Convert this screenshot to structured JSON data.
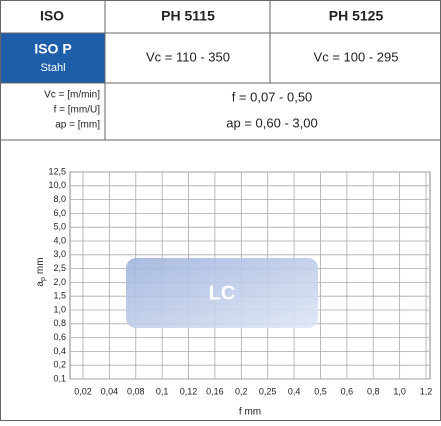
{
  "table": {
    "header": [
      "ISO",
      "PH 5115",
      "PH 5125"
    ],
    "material": {
      "code": "ISO P",
      "name": "Stahl",
      "cells": [
        "Vc = 110 - 350",
        "Vc = 100 - 295"
      ]
    },
    "units": {
      "labels": [
        "Vc = [m/min]",
        "f = [mm/U]",
        "ap = [mm]"
      ],
      "lines": [
        "f = 0,07 - 0,50",
        "ap = 0,60 - 3,00"
      ]
    }
  },
  "chart": {
    "ylabel": {
      "main": "a",
      "sub": "p",
      "unit": "mm"
    },
    "xlabel": "f mm",
    "yticks": [
      "12,5",
      "10,0",
      "8,0",
      "6,0",
      "5,0",
      "4,0",
      "3,0",
      "2,5",
      "2,0",
      "1,5",
      "1,0",
      "0,8",
      "0,6",
      "0,4",
      "0,2",
      "0,1"
    ],
    "xticks": [
      "0,02",
      "0,04",
      "0,08",
      "0,1",
      "0,12",
      "0,16",
      "0,2",
      "0,25",
      "0,4",
      "0,5",
      "0,6",
      "0,8",
      "1,0",
      "1,2"
    ],
    "region_label": "LC"
  }
}
